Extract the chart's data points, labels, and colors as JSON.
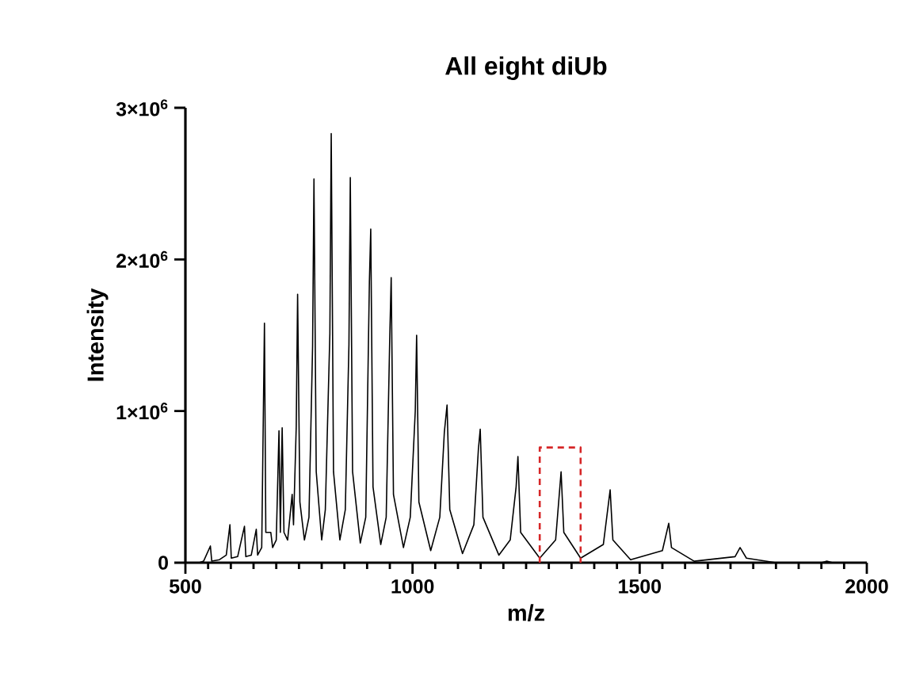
{
  "chart_data": {
    "type": "line",
    "title": "All eight diUb",
    "xlabel": "m/z",
    "ylabel": "Intensity",
    "xlim": [
      500,
      2000
    ],
    "ylim": [
      0,
      3000000
    ],
    "xticks": [
      500,
      {
        "value": 550,
        "label": null
      },
      {
        "value": 600,
        "label": null
      },
      {
        "value": 650,
        "label": null
      },
      {
        "value": 700,
        "label": null
      },
      {
        "value": 750,
        "label": null
      },
      {
        "value": 800,
        "label": null
      },
      {
        "value": 850,
        "label": null
      },
      {
        "value": 900,
        "label": null
      },
      {
        "value": 950,
        "label": null
      },
      1000,
      {
        "value": 1050,
        "label": null
      },
      {
        "value": 1100,
        "label": null
      },
      {
        "value": 1150,
        "label": null
      },
      {
        "value": 1200,
        "label": null
      },
      {
        "value": 1250,
        "label": null
      },
      {
        "value": 1300,
        "label": null
      },
      {
        "value": 1350,
        "label": null
      },
      {
        "value": 1400,
        "label": null
      },
      {
        "value": 1450,
        "label": null
      },
      1500,
      {
        "value": 1550,
        "label": null
      },
      {
        "value": 1600,
        "label": null
      },
      {
        "value": 1650,
        "label": null
      },
      {
        "value": 1700,
        "label": null
      },
      {
        "value": 1750,
        "label": null
      },
      {
        "value": 1800,
        "label": null
      },
      {
        "value": 1850,
        "label": null
      },
      {
        "value": 1900,
        "label": null
      },
      {
        "value": 1950,
        "label": null
      },
      2000
    ],
    "yticks": [
      0,
      {
        "value": 1000000,
        "label": "1×10$^{6}$"
      },
      {
        "value": 2000000,
        "label": "2×10$^{6}$"
      },
      {
        "value": 3000000,
        "label": "3×10$^{6}$"
      }
    ],
    "grid": false,
    "marker": "none",
    "series": [
      {
        "color": "#000000",
        "line_style": "solid",
        "x": [
          530,
          540,
          555,
          558,
          575,
          590,
          598,
          601,
          615,
          630,
          633,
          645,
          656,
          659,
          668,
          674,
          677,
          688,
          692,
          700,
          706,
          709,
          713,
          717,
          725,
          735,
          738,
          744,
          747,
          752,
          762,
          772,
          780,
          783,
          788,
          800,
          808,
          818,
          821,
          826,
          840,
          852,
          860,
          863,
          868,
          885,
          897,
          905,
          908,
          913,
          930,
          942,
          950,
          953,
          958,
          980,
          995,
          1006,
          1009,
          1014,
          1040,
          1060,
          1070,
          1076,
          1082,
          1110,
          1135,
          1145,
          1149,
          1155,
          1190,
          1215,
          1228,
          1232,
          1238,
          1280,
          1315,
          1327,
          1333,
          1370,
          1420,
          1435,
          1441,
          1480,
          1550,
          1564,
          1570,
          1620,
          1710,
          1721,
          1735,
          1800,
          1900,
          1912,
          1925,
          1940
        ],
        "values": [
          0,
          10000,
          110000,
          10000,
          20000,
          50000,
          250000,
          30000,
          40000,
          240000,
          40000,
          50000,
          220000,
          50000,
          100000,
          1580000,
          200000,
          200000,
          100000,
          150000,
          870000,
          200000,
          890000,
          200000,
          150000,
          450000,
          250000,
          900000,
          1770000,
          400000,
          150000,
          300000,
          1430000,
          2530000,
          600000,
          150000,
          350000,
          1510000,
          2830000,
          600000,
          150000,
          350000,
          1440000,
          2540000,
          600000,
          130000,
          300000,
          1850000,
          2200000,
          500000,
          120000,
          300000,
          1510000,
          1880000,
          450000,
          100000,
          300000,
          1000000,
          1500000,
          400000,
          80000,
          300000,
          860000,
          1040000,
          350000,
          60000,
          250000,
          750000,
          880000,
          300000,
          50000,
          150000,
          500000,
          700000,
          200000,
          30000,
          150000,
          600000,
          200000,
          30000,
          120000,
          480000,
          150000,
          20000,
          80000,
          260000,
          100000,
          10000,
          40000,
          100000,
          30000,
          0,
          0,
          10000,
          0,
          0
        ]
      },
      {
        "color": "#d62728",
        "line_style": "dashed",
        "x": [
          1280,
          1280,
          1370,
          1370
        ],
        "values": [
          0,
          760000,
          760000,
          0
        ]
      }
    ]
  }
}
